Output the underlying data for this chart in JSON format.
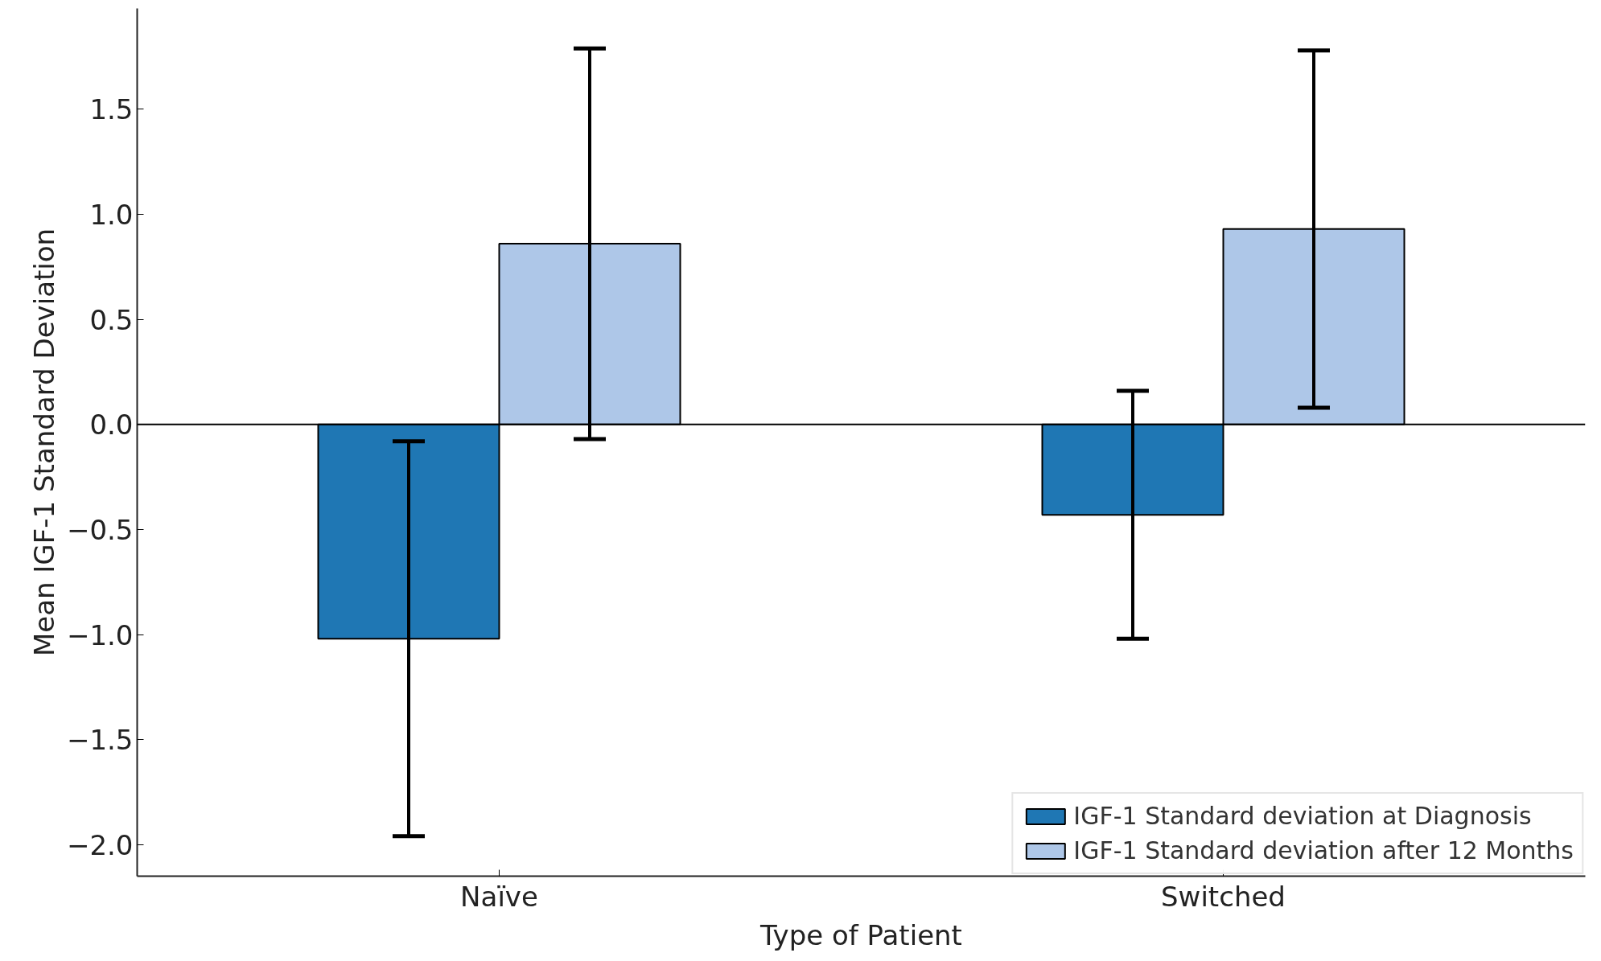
{
  "chart_data": {
    "type": "bar",
    "xlabel": "Type of Patient",
    "ylabel": "Mean IGF-1 Standard Deviation",
    "categories": [
      "Naïve",
      "Switched"
    ],
    "series": [
      {
        "name": "IGF-1 Standard deviation at Diagnosis",
        "color": "#1f77b4",
        "values": [
          -1.02,
          -0.43
        ],
        "errors": [
          0.94,
          0.59
        ]
      },
      {
        "name": "IGF-1 Standard deviation after 12 Months",
        "color": "#aec7e8",
        "values": [
          0.86,
          0.93
        ],
        "errors": [
          0.93,
          0.85
        ]
      }
    ],
    "ylim": [
      -2.15,
      1.98
    ],
    "yticks": [
      {
        "value": -2.0,
        "label": "−2.0"
      },
      {
        "value": -1.5,
        "label": "−1.5"
      },
      {
        "value": -1.0,
        "label": "−1.0"
      },
      {
        "value": -0.5,
        "label": "−0.5"
      },
      {
        "value": 0.0,
        "label": "0.0"
      },
      {
        "value": 0.5,
        "label": "0.5"
      },
      {
        "value": 1.0,
        "label": "1.0"
      },
      {
        "value": 1.5,
        "label": "1.5"
      }
    ],
    "ref_lines": [
      {
        "axis": "y",
        "value": 0,
        "color": "#000000"
      }
    ],
    "grid": false,
    "legend": "bottom right"
  }
}
